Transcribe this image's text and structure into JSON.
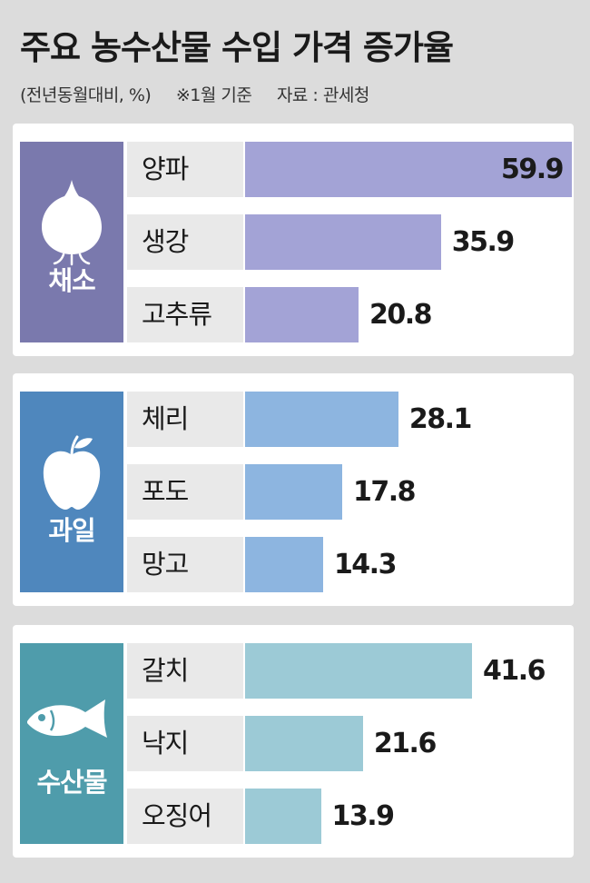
{
  "title": "주요 농수산물 수입 가격 증가율",
  "subtitle": {
    "unit": "(전년동월대비, %)",
    "note": "※1월 기준",
    "source": "자료 : 관세청"
  },
  "colors": {
    "vegetable_box": "#7a79ad",
    "vegetable_bar": "#a3a3d6",
    "fruit_box": "#4f87bd",
    "fruit_bar": "#8db5e0",
    "seafood_box": "#4f9cab",
    "seafood_bar": "#9ccad6"
  },
  "chart_data": {
    "type": "bar",
    "orientation": "horizontal",
    "xlim": [
      0,
      59.9
    ],
    "groups": [
      {
        "name": "채소",
        "icon": "onion-icon",
        "items": [
          {
            "label": "양파",
            "value": 59.9
          },
          {
            "label": "생강",
            "value": 35.9
          },
          {
            "label": "고추류",
            "value": 20.8
          }
        ]
      },
      {
        "name": "과일",
        "icon": "apple-icon",
        "items": [
          {
            "label": "체리",
            "value": 28.1
          },
          {
            "label": "포도",
            "value": 17.8
          },
          {
            "label": "망고",
            "value": 14.3
          }
        ]
      },
      {
        "name": "수산물",
        "icon": "fish-icon",
        "items": [
          {
            "label": "갈치",
            "value": 41.6
          },
          {
            "label": "낙지",
            "value": 21.6
          },
          {
            "label": "오징어",
            "value": 13.9
          }
        ]
      }
    ]
  }
}
